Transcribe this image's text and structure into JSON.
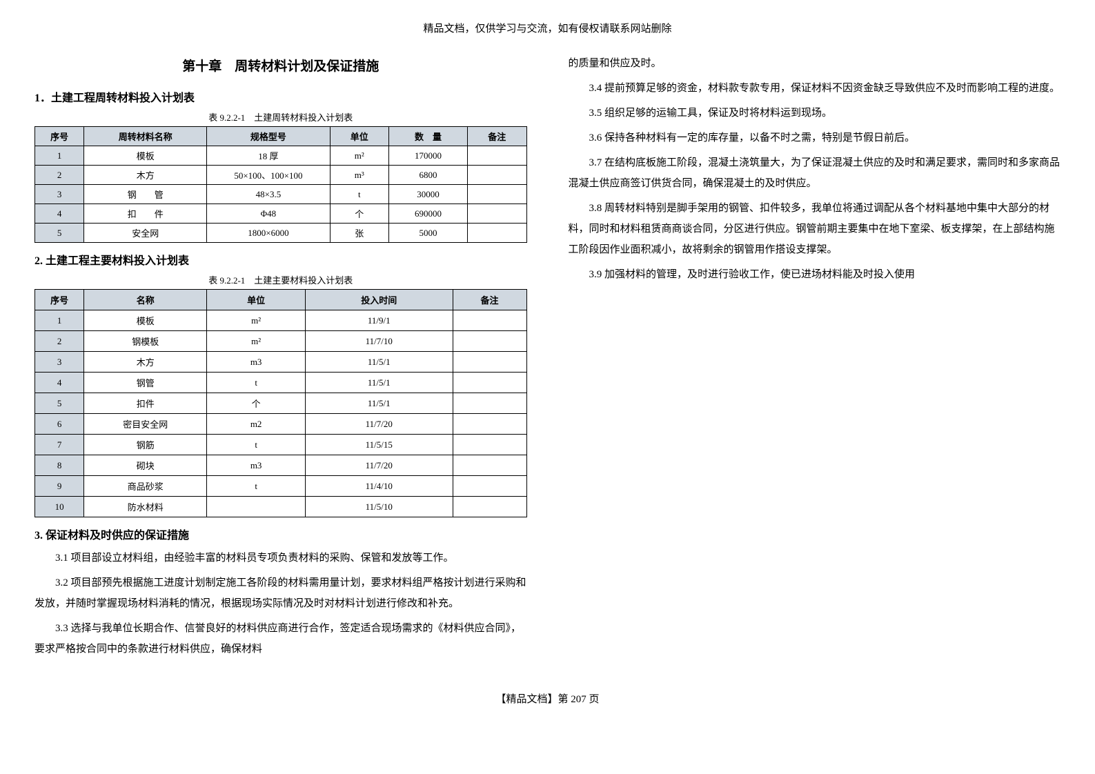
{
  "header_note": "精品文档，仅供学习与交流，如有侵权请联系网站删除",
  "chapter_title": "第十章　周转材料计划及保证措施",
  "section1_title": "1．土建工程周转材料投入计划表",
  "table1_caption": "表 9.2.2-1　土建周转材料投入计划表",
  "table1": {
    "headers": [
      "序号",
      "周转材料名称",
      "规格型号",
      "单位",
      "数　量",
      "备注"
    ],
    "rows": [
      [
        "1",
        "模板",
        "18 厚",
        "m²",
        "170000",
        ""
      ],
      [
        "2",
        "木方",
        "50×100、100×100",
        "m³",
        "6800",
        ""
      ],
      [
        "3",
        "钢　　管",
        "48×3.5",
        "t",
        "30000",
        ""
      ],
      [
        "4",
        "扣　　件",
        "Φ48",
        "个",
        "690000",
        ""
      ],
      [
        "5",
        "安全网",
        "1800×6000",
        "张",
        "5000",
        ""
      ]
    ],
    "col_widths": [
      "10%",
      "25%",
      "25%",
      "12%",
      "16%",
      "12%"
    ]
  },
  "section2_title": "2. 土建工程主要材料投入计划表",
  "table2_caption": "表 9.2.2-1　土建主要材料投入计划表",
  "table2": {
    "headers": [
      "序号",
      "名称",
      "单位",
      "投入时间",
      "备注"
    ],
    "rows": [
      [
        "1",
        "模板",
        "m²",
        "11/9/1",
        ""
      ],
      [
        "2",
        "钢模板",
        "m²",
        "11/7/10",
        ""
      ],
      [
        "3",
        "木方",
        "m3",
        "11/5/1",
        ""
      ],
      [
        "4",
        "钢管",
        "t",
        "11/5/1",
        ""
      ],
      [
        "5",
        "扣件",
        "个",
        "11/5/1",
        ""
      ],
      [
        "6",
        "密目安全网",
        "m2",
        "11/7/20",
        ""
      ],
      [
        "7",
        "钢筋",
        "t",
        "11/5/15",
        ""
      ],
      [
        "8",
        "砌块",
        "m3",
        "11/7/20",
        ""
      ],
      [
        "9",
        "商品砂浆",
        "t",
        "11/4/10",
        ""
      ],
      [
        "10",
        "防水材料",
        "",
        "11/5/10",
        ""
      ]
    ],
    "col_widths": [
      "10%",
      "25%",
      "20%",
      "30%",
      "15%"
    ]
  },
  "section3_title": "3. 保证材料及时供应的保证措施",
  "paras_left": [
    "3.1 项目部设立材料组，由经验丰富的材料员专项负责材料的采购、保管和发放等工作。",
    "3.2 项目部预先根据施工进度计划制定施工各阶段的材料需用量计划，要求材料组严格按计划进行采购和发放，并随时掌握现场材料消耗的情况，根据现场实际情况及时对材料计划进行修改和补充。",
    "3.3 选择与我单位长期合作、信誉良好的材料供应商进行合作，签定适合现场需求的《材料供应合同》，要求严格按合同中的条款进行材料供应，确保材料"
  ],
  "paras_right": [
    "的质量和供应及时。",
    "3.4 提前预算足够的资金，材料款专款专用，保证材料不因资金缺乏导致供应不及时而影响工程的进度。",
    "3.5 组织足够的运输工具，保证及时将材料运到现场。",
    "3.6 保持各种材料有一定的库存量，以备不时之需，特别是节假日前后。",
    "3.7 在结构底板施工阶段，混凝土浇筑量大，为了保证混凝土供应的及时和满足要求，需同时和多家商品混凝土供应商签订供货合同，确保混凝土的及时供应。",
    "3.8 周转材料特别是脚手架用的钢管、扣件较多，我单位将通过调配从各个材料基地中集中大部分的材料，同时和材料租赁商商谈合同，分区进行供应。钢管前期主要集中在地下室梁、板支撑架，在上部结构施工阶段因作业面积减小，故将剩余的钢管用作搭设支撑架。",
    "3.9 加强材料的管理，及时进行验收工作，使已进场材料能及时投入使用"
  ],
  "footer": "【精品文档】第 207 页",
  "colors": {
    "header_bg": "#d0d8e0",
    "border": "#000000",
    "text": "#000000",
    "page_bg": "#ffffff"
  }
}
